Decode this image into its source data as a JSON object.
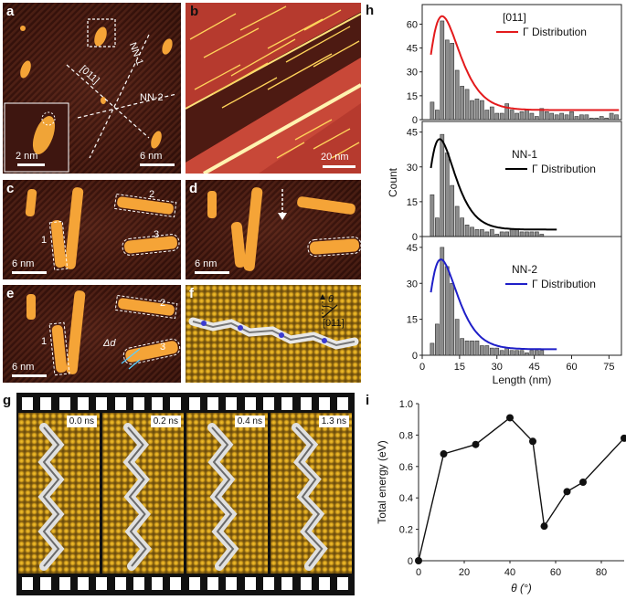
{
  "panels": {
    "a": {
      "label": "a",
      "labels": {
        "nn1": "NN-1",
        "o11": "[011]",
        "nn2": "NN-2"
      },
      "inset_scale": "2 nm",
      "scale": "6 nm"
    },
    "b": {
      "label": "b",
      "scale": "20 nm"
    },
    "c": {
      "label": "c",
      "chains": {
        "one": "1",
        "two": "2",
        "three": "3"
      },
      "scale": "6 nm"
    },
    "d": {
      "label": "d",
      "scale": "6 nm"
    },
    "e": {
      "label": "e",
      "chains": {
        "one": "1",
        "two": "2",
        "three": "3"
      },
      "delta": "Δd",
      "scale": "6 nm"
    },
    "f": {
      "label": "f",
      "theta": "θ",
      "direction": "[011]"
    },
    "g": {
      "label": "g",
      "frames": [
        "0.0 ns",
        "0.2 ns",
        "0.4 ns",
        "1.3 ns"
      ]
    },
    "h": {
      "label": "h"
    },
    "i": {
      "label": "i"
    }
  },
  "chart_data": [
    {
      "id": "h-top",
      "type": "bar",
      "title": "[011]",
      "legend": "Γ Distribution",
      "line_color": "#e31a1c",
      "x": [
        4,
        6,
        8,
        10,
        12,
        14,
        16,
        18,
        20,
        22,
        24,
        26,
        28,
        30,
        32,
        34,
        36,
        38,
        40,
        42,
        44,
        46,
        48,
        50,
        52,
        54,
        56,
        58,
        60,
        62,
        64,
        66,
        68,
        70,
        72,
        74,
        76,
        78
      ],
      "values": [
        11,
        6,
        62,
        50,
        48,
        31,
        21,
        19,
        12,
        13,
        12,
        6,
        8,
        4,
        4,
        10,
        6,
        4,
        5,
        6,
        4,
        2,
        7,
        5,
        4,
        3,
        4,
        3,
        5,
        2,
        3,
        3,
        1,
        1,
        2,
        1,
        4,
        3
      ],
      "fit": {
        "peak": 8,
        "peak_value": 65,
        "baseline": 6
      },
      "ylim": [
        0,
        70
      ],
      "yticks": [
        0,
        15,
        30,
        45,
        60
      ],
      "xlim": [
        0,
        80
      ]
    },
    {
      "id": "h-mid",
      "type": "bar",
      "title": "NN-1",
      "legend": "Γ Distribution",
      "line_color": "#000000",
      "x": [
        4,
        6,
        8,
        10,
        12,
        14,
        16,
        18,
        20,
        22,
        24,
        26,
        28,
        30,
        32,
        34,
        36,
        38,
        40,
        42,
        44,
        46,
        48
      ],
      "values": [
        18,
        8,
        44,
        36,
        22,
        13,
        8,
        5,
        4,
        3,
        3,
        2,
        3,
        1,
        2,
        2,
        3,
        3,
        2,
        2,
        2,
        2,
        1
      ],
      "fit": {
        "peak": 7,
        "peak_value": 42,
        "baseline": 3
      },
      "ylim": [
        0,
        48
      ],
      "yticks": [
        0,
        15,
        30,
        45
      ],
      "xlim": [
        0,
        80
      ]
    },
    {
      "id": "h-bot",
      "type": "bar",
      "title": "NN-2",
      "legend": "Γ Distribution",
      "line_color": "#1f1fc8",
      "x": [
        4,
        6,
        8,
        10,
        12,
        14,
        16,
        18,
        20,
        22,
        24,
        26,
        28,
        30,
        32,
        34,
        36,
        38,
        40,
        42,
        44,
        46,
        48
      ],
      "values": [
        5,
        13,
        45,
        37,
        30,
        15,
        7,
        6,
        6,
        6,
        4,
        4,
        3,
        3,
        2,
        3,
        2,
        2,
        2,
        1,
        2,
        2,
        2
      ],
      "fit": {
        "peak": 7.5,
        "peak_value": 40,
        "baseline": 2.5
      },
      "ylim": [
        0,
        48
      ],
      "yticks": [
        0,
        15,
        30,
        45
      ],
      "xlim": [
        0,
        80
      ],
      "xticks": [
        0,
        15,
        30,
        45,
        60,
        75
      ],
      "xlabel": "Length (nm)"
    },
    {
      "id": "i",
      "type": "line",
      "x": [
        0,
        11,
        25,
        40,
        50,
        55,
        65,
        72,
        90
      ],
      "values": [
        0,
        0.68,
        0.74,
        0.91,
        0.76,
        0.22,
        0.44,
        0.5,
        0.78
      ],
      "xlim": [
        0,
        90
      ],
      "ylim": [
        0,
        1.0
      ],
      "xticks": [
        0,
        20,
        40,
        60,
        80
      ],
      "yticks": [
        0,
        0.2,
        0.4,
        0.6,
        0.8,
        1.0
      ],
      "xlabel": "θ (°)",
      "ylabel": "Total energy (eV)"
    }
  ],
  "shared_ylabel": "Count"
}
